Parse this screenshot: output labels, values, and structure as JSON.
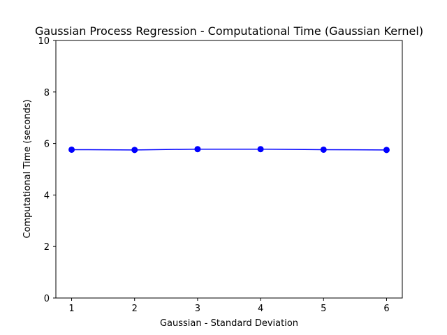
{
  "chart_data": {
    "type": "line",
    "title": "Gaussian Process Regression - Computational Time (Gaussian Kernel)",
    "xlabel": "Gaussian - Standard Deviation",
    "ylabel": "Computational Time (seconds)",
    "x": [
      1,
      2,
      3,
      4,
      5,
      6
    ],
    "series": [
      {
        "name": "Computational Time",
        "values": [
          5.76,
          5.75,
          5.78,
          5.78,
          5.76,
          5.75
        ],
        "color": "#0000ff",
        "marker": "circle"
      }
    ],
    "xlim": [
      0.75,
      6.25
    ],
    "ylim": [
      0,
      10
    ],
    "xticks": [
      "1",
      "2",
      "3",
      "4",
      "5",
      "6"
    ],
    "yticks": [
      "0",
      "2",
      "4",
      "6",
      "8",
      "10"
    ],
    "ytick_values": [
      0,
      2,
      4,
      6,
      8,
      10
    ],
    "grid": false,
    "legend": "none"
  }
}
